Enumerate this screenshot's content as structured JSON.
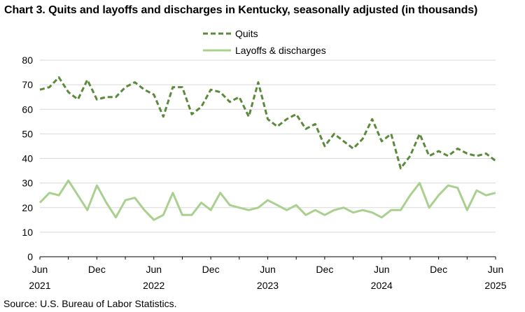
{
  "chart_data": {
    "type": "line",
    "title": "Chart 3. Quits and layoffs and discharges in Kentucky, seasonally adjusted (in thousands)",
    "source": "Source: U.S. Bureau of Labor Statistics.",
    "ylim": [
      0,
      80
    ],
    "yticks": [
      0,
      10,
      20,
      30,
      40,
      50,
      60,
      70,
      80
    ],
    "grid": true,
    "legend_position": "top-center",
    "x": [
      "2021-06",
      "2021-07",
      "2021-08",
      "2021-09",
      "2021-10",
      "2021-11",
      "2021-12",
      "2022-01",
      "2022-02",
      "2022-03",
      "2022-04",
      "2022-05",
      "2022-06",
      "2022-07",
      "2022-08",
      "2022-09",
      "2022-10",
      "2022-11",
      "2022-12",
      "2023-01",
      "2023-02",
      "2023-03",
      "2023-04",
      "2023-05",
      "2023-06",
      "2023-07",
      "2023-08",
      "2023-09",
      "2023-10",
      "2023-11",
      "2023-12",
      "2024-01",
      "2024-02",
      "2024-03",
      "2024-04",
      "2024-05",
      "2024-06",
      "2024-07",
      "2024-08",
      "2024-09",
      "2024-10",
      "2024-11",
      "2024-12",
      "2025-01",
      "2025-02",
      "2025-03",
      "2025-04",
      "2025-05",
      "2025-06"
    ],
    "xtick_labels": [
      {
        "month": "Jun",
        "year": "2021"
      },
      {
        "month": "Dec",
        "year": ""
      },
      {
        "month": "Jun",
        "year": "2022"
      },
      {
        "month": "Dec",
        "year": ""
      },
      {
        "month": "Jun",
        "year": "2023"
      },
      {
        "month": "Dec",
        "year": ""
      },
      {
        "month": "Jun",
        "year": "2024"
      },
      {
        "month": "Dec",
        "year": ""
      },
      {
        "month": "Jun",
        "year": "2025"
      }
    ],
    "series": [
      {
        "name": "Quits",
        "color": "#5b8a3c",
        "style": "dashed",
        "values": [
          68,
          69,
          73,
          67,
          64,
          72,
          64,
          65,
          65,
          69,
          71,
          68,
          66,
          57,
          69,
          69,
          58,
          61,
          68,
          67,
          63,
          65,
          57,
          71,
          56,
          53,
          56,
          58,
          52,
          54,
          45,
          50,
          47,
          44,
          48,
          56,
          47,
          50,
          36,
          41,
          50,
          41,
          43,
          41,
          44,
          42,
          41,
          42,
          39
        ]
      },
      {
        "name": "Layoffs & discharges",
        "color": "#a9d08e",
        "style": "solid",
        "values": [
          22,
          26,
          25,
          31,
          25,
          19,
          29,
          22,
          16,
          23,
          24,
          19,
          15,
          17,
          26,
          17,
          17,
          22,
          19,
          26,
          21,
          20,
          19,
          20,
          23,
          21,
          19,
          21,
          17,
          19,
          17,
          19,
          20,
          18,
          19,
          18,
          16,
          19,
          19,
          25,
          30,
          20,
          25,
          29,
          28,
          19,
          27,
          25,
          26
        ]
      }
    ]
  }
}
